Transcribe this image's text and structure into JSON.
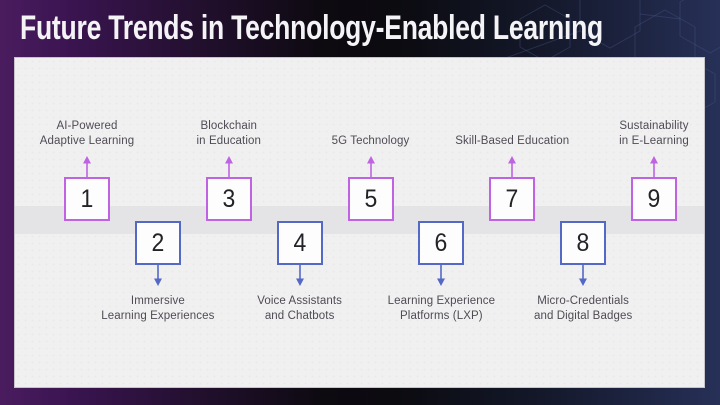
{
  "slide": {
    "title": "Future Trends in Technology-Enabled Learning"
  },
  "accent_colors": {
    "purple": "#bf63e3",
    "blue": "#5468c5"
  },
  "timeline": {
    "items": [
      {
        "number": "1",
        "side": "top",
        "accent": "purple",
        "label_lines": [
          "AI-Powered",
          "Adaptive Learning"
        ]
      },
      {
        "number": "2",
        "side": "bottom",
        "accent": "blue",
        "label_lines": [
          "Immersive",
          "Learning Experiences"
        ]
      },
      {
        "number": "3",
        "side": "top",
        "accent": "purple",
        "label_lines": [
          "Blockchain",
          "in Education"
        ]
      },
      {
        "number": "4",
        "side": "bottom",
        "accent": "blue",
        "label_lines": [
          "Voice Assistants",
          "and Chatbots"
        ]
      },
      {
        "number": "5",
        "side": "top",
        "accent": "purple",
        "label_lines": [
          "5G Technology"
        ]
      },
      {
        "number": "6",
        "side": "bottom",
        "accent": "blue",
        "label_lines": [
          "Learning Experience",
          "Platforms (LXP)"
        ]
      },
      {
        "number": "7",
        "side": "top",
        "accent": "purple",
        "label_lines": [
          "Skill-Based Education"
        ]
      },
      {
        "number": "8",
        "side": "bottom",
        "accent": "blue",
        "label_lines": [
          "Micro-Credentials",
          "and Digital Badges"
        ]
      },
      {
        "number": "9",
        "side": "top",
        "accent": "purple",
        "label_lines": [
          "Sustainability",
          "in E-Learning"
        ]
      }
    ]
  }
}
